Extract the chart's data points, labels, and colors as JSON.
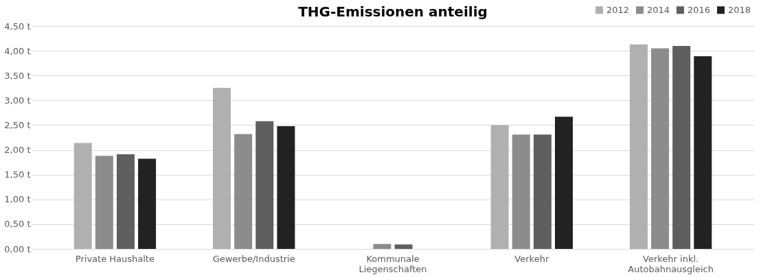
{
  "chart_data": {
    "type": "bar",
    "title": "THG-Emissionen anteilig",
    "categories": [
      "Private Haushalte",
      "Gewerbe/Industrie",
      "Kommunale Liegenschaften",
      "Verkehr",
      "Verkehr inkl. Autobahnausgleich"
    ],
    "series": [
      {
        "name": "2012",
        "color": "#b0b0b0",
        "values": [
          2.14,
          3.25,
          0,
          2.5,
          4.13
        ]
      },
      {
        "name": "2014",
        "color": "#8c8c8c",
        "values": [
          1.88,
          2.32,
          0.1,
          2.31,
          4.05
        ]
      },
      {
        "name": "2016",
        "color": "#5f5f5f",
        "values": [
          1.91,
          2.58,
          0.09,
          2.31,
          4.1
        ]
      },
      {
        "name": "2018",
        "color": "#222222",
        "values": [
          1.82,
          2.48,
          0,
          2.67,
          3.89
        ]
      }
    ],
    "ylim": [
      0,
      4.5
    ],
    "yticks": [
      {
        "value": 0,
        "label": "0,00 t"
      },
      {
        "value": 0.5,
        "label": "0,50 t"
      },
      {
        "value": 1,
        "label": "1,00 t"
      },
      {
        "value": 1.5,
        "label": "1,50 t"
      },
      {
        "value": 2,
        "label": "2,00 t"
      },
      {
        "value": 2.5,
        "label": "2,50 t"
      },
      {
        "value": 3,
        "label": "3,00 t"
      },
      {
        "value": 3.5,
        "label": "3,50 t"
      },
      {
        "value": 4,
        "label": "4,00 t"
      },
      {
        "value": 4.5,
        "label": "4,50 t"
      }
    ],
    "grid": "y",
    "legend": "top right"
  }
}
